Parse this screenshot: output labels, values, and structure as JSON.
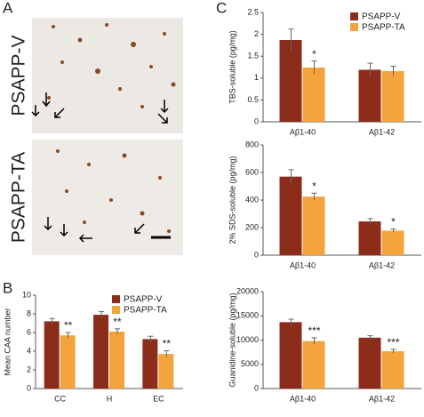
{
  "panels": {
    "a": "A",
    "b": "B",
    "c": "C",
    "image_labels": [
      "PSAPP-V",
      "PSAPP-TA"
    ]
  },
  "chart_data": [
    {
      "type": "bar",
      "ylabel": "Mean CAA number",
      "categories": [
        "CC",
        "H",
        "EC"
      ],
      "series": [
        {
          "name": "PSAPP-V",
          "color": "#8c2d1c",
          "values": [
            7.2,
            7.9,
            5.3
          ],
          "errors": [
            0.3,
            0.35,
            0.3
          ],
          "significance": [
            null,
            null,
            null
          ]
        },
        {
          "name": "PSAPP-TA",
          "color": "#f4a43c",
          "values": [
            5.7,
            6.1,
            3.7
          ],
          "errors": [
            0.3,
            0.3,
            0.35
          ],
          "significance": [
            "**",
            "**",
            "**"
          ]
        }
      ],
      "ylim": [
        0,
        10
      ],
      "yticks": [
        0,
        2,
        4,
        6,
        8,
        10
      ],
      "legend": "upper right"
    },
    {
      "type": "bar",
      "ylabel": "TBS-soluble (pg/mg)",
      "categories": [
        "Aβ1-40",
        "Aβ1-42"
      ],
      "series": [
        {
          "name": "PSAPP-V",
          "color": "#8c2d1c",
          "values": [
            1.87,
            1.19
          ],
          "errors": [
            0.25,
            0.15
          ],
          "significance": [
            null,
            null
          ]
        },
        {
          "name": "PSAPP-TA",
          "color": "#f4a43c",
          "values": [
            1.24,
            1.16
          ],
          "errors": [
            0.15,
            0.11
          ],
          "significance": [
            "*",
            null
          ]
        }
      ],
      "ylim": [
        0,
        2.5
      ],
      "yticks": [
        0,
        0.5,
        1,
        1.5,
        2,
        2.5
      ],
      "legend": "upper right"
    },
    {
      "type": "bar",
      "ylabel": "2% SDS-soluble (pg/mg)",
      "categories": [
        "Aβ1-40",
        "Aβ1-42"
      ],
      "series": [
        {
          "name": "PSAPP-V",
          "color": "#8c2d1c",
          "values": [
            570,
            245
          ],
          "errors": [
            50,
            20
          ],
          "significance": [
            null,
            null
          ]
        },
        {
          "name": "PSAPP-TA",
          "color": "#f4a43c",
          "values": [
            425,
            178
          ],
          "errors": [
            25,
            12
          ],
          "significance": [
            "*",
            "*"
          ]
        }
      ],
      "ylim": [
        0,
        800
      ],
      "yticks": [
        0,
        200,
        400,
        600,
        800
      ]
    },
    {
      "type": "bar",
      "ylabel": "Guanidine-soluble (pg/mg)",
      "categories": [
        "Aβ1-40",
        "Aβ1-42"
      ],
      "series": [
        {
          "name": "PSAPP-V",
          "color": "#8c2d1c",
          "values": [
            13700,
            10500
          ],
          "errors": [
            600,
            400
          ],
          "significance": [
            null,
            null
          ]
        },
        {
          "name": "PSAPP-TA",
          "color": "#f4a43c",
          "values": [
            9800,
            7700
          ],
          "errors": [
            650,
            400
          ],
          "significance": [
            "***",
            "***"
          ]
        }
      ],
      "ylim": [
        0,
        20000
      ],
      "yticks": [
        0,
        5000,
        10000,
        15000,
        20000
      ]
    }
  ]
}
